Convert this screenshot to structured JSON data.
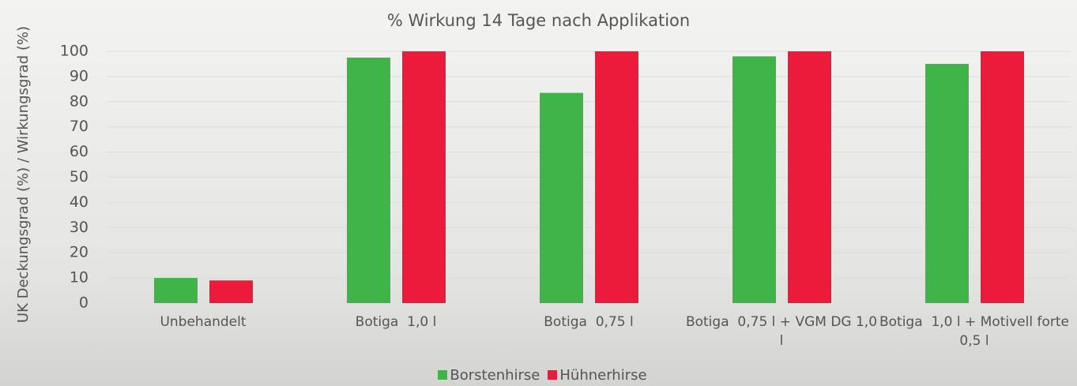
{
  "chart_data": {
    "type": "bar",
    "title": "% Wirkung 14 Tage nach Applikation",
    "y_label": "UK Deckungsgrad (%) / Wirkungsgrad (%)",
    "categories": [
      "Unbehandelt",
      "Botiga  1,0 l",
      "Botiga  0,75 l",
      "Botiga  0,75 l + VGM DG 1,0 l",
      "Botiga  1,0 l + Motivell forte 0,5 l"
    ],
    "series": [
      {
        "name": "Borstenhirse",
        "color": "#3fb549",
        "values": [
          10,
          97.5,
          83.5,
          98,
          95
        ]
      },
      {
        "name": "Hühnerhirse",
        "color": "#ec1b3c",
        "values": [
          9,
          100,
          100,
          100,
          100
        ]
      }
    ],
    "ylim": [
      0,
      100
    ],
    "yticks": [
      0,
      10,
      20,
      30,
      40,
      50,
      60,
      70,
      80,
      90,
      100
    ],
    "grid": true,
    "legend": "bottom"
  }
}
